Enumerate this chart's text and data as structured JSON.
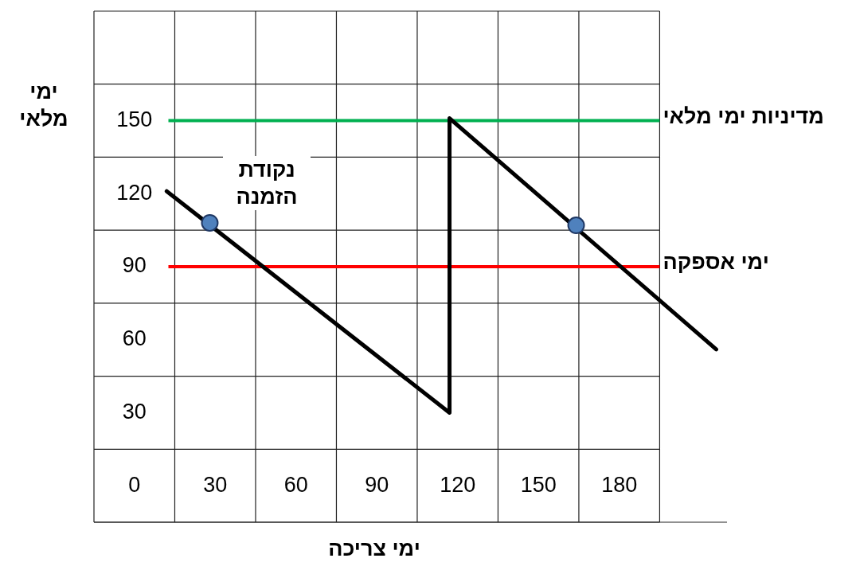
{
  "chart_data": {
    "type": "line",
    "xlabel": "ימי צריכה",
    "ylabel": "ימי מלאי",
    "annotations": [
      "נקודת הזמנה"
    ],
    "xlim": [
      -15,
      220
    ],
    "ylim": [
      -15,
      195
    ],
    "xticks": [
      0,
      30,
      60,
      90,
      120,
      150,
      180
    ],
    "yticks": [
      30,
      60,
      90,
      120,
      150
    ],
    "grid": true,
    "series": [
      {
        "type": "line",
        "color": "#000000",
        "marker": "none",
        "x": [
          12,
          117,
          117,
          216
        ],
        "values": [
          121,
          30,
          151,
          56
        ]
      },
      {
        "type": "scatter",
        "color": "#4f81bd",
        "marker": "circle",
        "x": [
          28,
          164
        ],
        "values": [
          108,
          107
        ]
      }
    ],
    "ref_lines": [
      {
        "axis": "y",
        "value": 150,
        "label": "מדיניות ימי מלאי",
        "color": "#00b050"
      },
      {
        "axis": "y",
        "value": 90,
        "label": "ימי אספקה",
        "color": "#ff0000"
      }
    ]
  }
}
